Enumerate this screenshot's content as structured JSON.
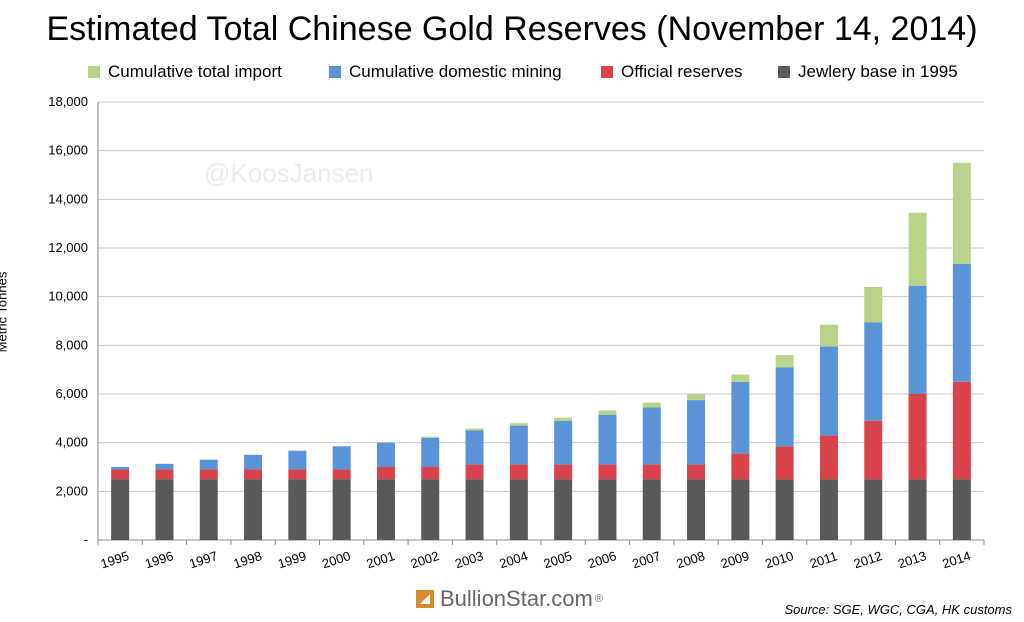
{
  "title": "Estimated Total Chinese Gold Reserves (November 14, 2014)",
  "watermark": "@KoosJansen",
  "brand": {
    "name": "BullionStar.com",
    "mark": "®"
  },
  "source": "Source: SGE, WGC, CGA, HK customs",
  "legend": [
    {
      "label": "Cumulative total import",
      "color": "#b9d38b"
    },
    {
      "label": "Cumulative domestic mining",
      "color": "#5b93d8"
    },
    {
      "label": "Official reserves",
      "color": "#d9434b"
    },
    {
      "label": "Jewlery base in 1995",
      "color": "#595959"
    }
  ],
  "chart_data": {
    "type": "bar",
    "stacked": true,
    "title": "Estimated Total Chinese Gold Reserves (November 14, 2014)",
    "xlabel": "",
    "ylabel": "Metric Tonnes",
    "ylim": [
      0,
      18000
    ],
    "yticks": [
      "-",
      "2,000",
      "4,000",
      "6,000",
      "8,000",
      "10,000",
      "12,000",
      "14,000",
      "16,000",
      "18,000"
    ],
    "grid": true,
    "legend_position": "top",
    "categories": [
      "1995",
      "1996",
      "1997",
      "1998",
      "1999",
      "2000",
      "2001",
      "2002",
      "2003",
      "2004",
      "2005",
      "2006",
      "2007",
      "2008",
      "2009",
      "2010",
      "2011",
      "2012",
      "2013",
      "2014"
    ],
    "series": [
      {
        "name": "Jewlery base in 1995",
        "color": "#595959",
        "values": [
          2500,
          2500,
          2500,
          2500,
          2500,
          2500,
          2500,
          2500,
          2500,
          2500,
          2500,
          2500,
          2500,
          2500,
          2500,
          2500,
          2500,
          2500,
          2500,
          2500
        ]
      },
      {
        "name": "Official reserves",
        "color": "#d9434b",
        "values": [
          400,
          400,
          400,
          400,
          400,
          400,
          500,
          500,
          600,
          600,
          600,
          600,
          600,
          600,
          1050,
          1350,
          1800,
          2400,
          3500,
          4000
        ]
      },
      {
        "name": "Cumulative domestic mining",
        "color": "#5b93d8",
        "values": [
          100,
          230,
          400,
          600,
          770,
          950,
          1000,
          1200,
          1400,
          1600,
          1800,
          2050,
          2350,
          2650,
          2950,
          3250,
          3650,
          4050,
          4450,
          4850
        ]
      },
      {
        "name": "Cumulative total import",
        "color": "#b9d38b",
        "values": [
          0,
          0,
          0,
          0,
          0,
          0,
          0,
          50,
          80,
          100,
          130,
          170,
          200,
          250,
          300,
          500,
          900,
          1450,
          3000,
          4150
        ]
      }
    ]
  }
}
